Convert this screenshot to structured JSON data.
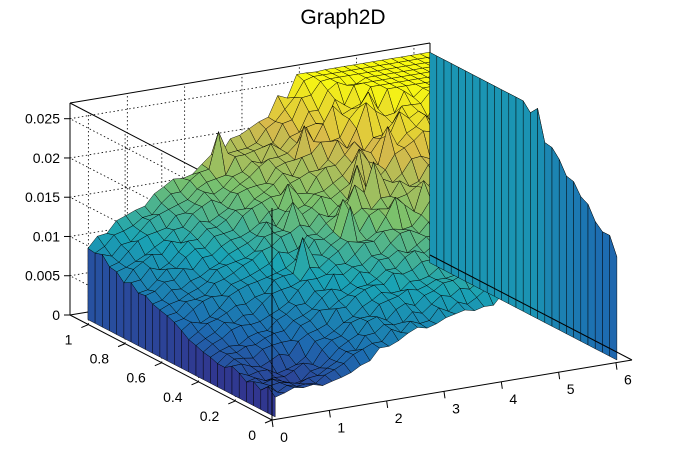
{
  "chart_data": {
    "type": "surface",
    "title": "Graph2D",
    "xlabel": "",
    "ylabel": "",
    "zlabel": "",
    "xlim": [
      0,
      6.28
    ],
    "ylim": [
      0,
      1.1
    ],
    "zlim": [
      0,
      0.027
    ],
    "x_ticks": [
      "0",
      "1",
      "2",
      "3",
      "4",
      "5",
      "6"
    ],
    "x_tick_values": [
      0,
      1,
      2,
      3,
      4,
      5,
      6
    ],
    "y_ticks": [
      "0",
      "0.2",
      "0.4",
      "0.6",
      "0.8",
      "1"
    ],
    "y_tick_values": [
      0,
      0.2,
      0.4,
      0.6,
      0.8,
      1.0
    ],
    "z_ticks": [
      "0",
      "0.005",
      "0.01",
      "0.015",
      "0.02",
      "0.025"
    ],
    "z_tick_values": [
      0,
      0.005,
      0.01,
      0.015,
      0.02,
      0.025
    ],
    "grid": true,
    "colormap": "viridis-like",
    "colors": [
      "#352a87",
      "#1d6cb1",
      "#1aa3b4",
      "#7bc16c",
      "#d8ba4a",
      "#f9fb0e"
    ]
  }
}
